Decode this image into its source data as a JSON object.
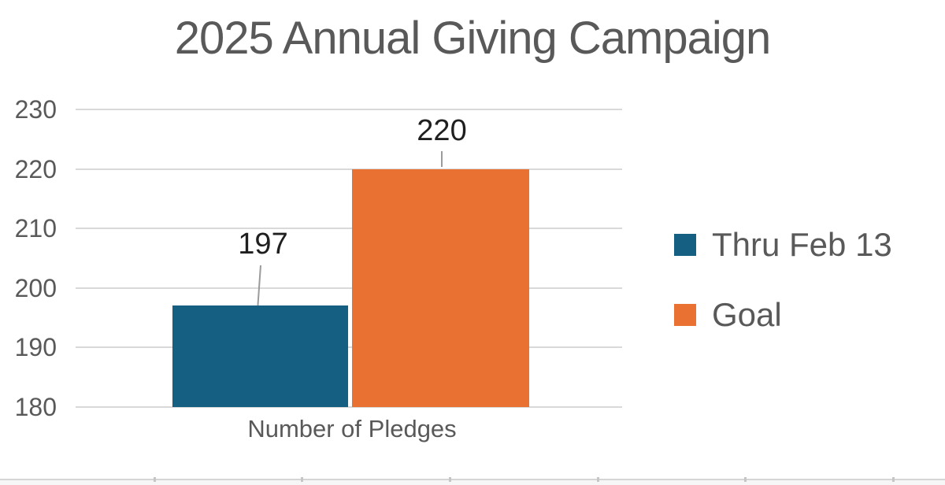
{
  "title": "2025 Annual Giving Campaign",
  "chart_data": {
    "type": "bar",
    "title": "2025 Annual Giving Campaign",
    "categories": [
      "Number of Pledges"
    ],
    "series": [
      {
        "name": "Thru Feb 13",
        "values": [
          197
        ],
        "color": "#156082"
      },
      {
        "name": "Goal",
        "values": [
          220
        ],
        "color": "#E97132"
      }
    ],
    "data_labels": [
      "197",
      "220"
    ],
    "xlabel": "Number of Pledges",
    "ylabel": "",
    "ylim": [
      180,
      230
    ],
    "ytick_step": 10,
    "ytick_labels": [
      "230",
      "220",
      "210",
      "200",
      "190",
      "180"
    ],
    "grid": true,
    "legend_position": "right",
    "legend": [
      {
        "label": "Thru Feb 13",
        "color": "#156082"
      },
      {
        "label": "Goal",
        "color": "#E97132"
      }
    ]
  },
  "colors": {
    "title_text": "#595959",
    "axis_text": "#595959",
    "data_label_text": "#1f1f1f",
    "gridline": "#d9d9d9",
    "leader_line": "#9b9b9b",
    "series_blue": "#156082",
    "series_orange": "#E97132",
    "sheet_edge_line": "#d5d5d5"
  }
}
